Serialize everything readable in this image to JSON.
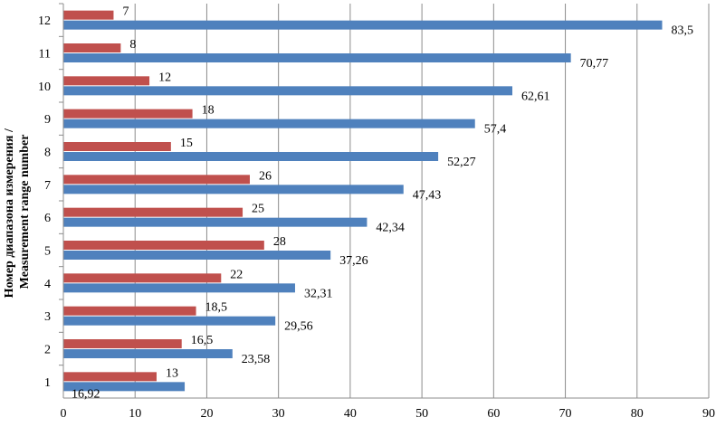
{
  "chart_data": {
    "type": "bar",
    "orientation": "horizontal",
    "title": "",
    "xlabel": "",
    "ylabel_line1": "Номер диапазона измерения /",
    "ylabel_line2": "Measurement range number",
    "categories": [
      "1",
      "2",
      "3",
      "4",
      "5",
      "6",
      "7",
      "8",
      "9",
      "10",
      "11",
      "12"
    ],
    "xlim": [
      0,
      90
    ],
    "xticks": [
      0,
      10,
      20,
      30,
      40,
      50,
      60,
      70,
      80,
      90
    ],
    "grid": "vertical",
    "legend": "none",
    "series": [
      {
        "color": "#4f81bd",
        "values": [
          16.92,
          23.58,
          29.56,
          32.31,
          37.26,
          42.34,
          47.43,
          52.27,
          57.4,
          62.61,
          70.77,
          83.5
        ],
        "labels": [
          "16,92",
          "23,58",
          "29,56",
          "32,31",
          "37,26",
          "42,34",
          "47,43",
          "52,27",
          "57,4",
          "62,61",
          "70,77",
          "83,5"
        ]
      },
      {
        "color": "#c0504d",
        "values": [
          13,
          16.5,
          18.5,
          22,
          28,
          25,
          26,
          15,
          18,
          12,
          8,
          7
        ],
        "labels": [
          "13",
          "16,5",
          "18,5",
          "22",
          "28",
          "25",
          "26",
          "15",
          "18",
          "12",
          "8",
          "7"
        ]
      }
    ]
  }
}
